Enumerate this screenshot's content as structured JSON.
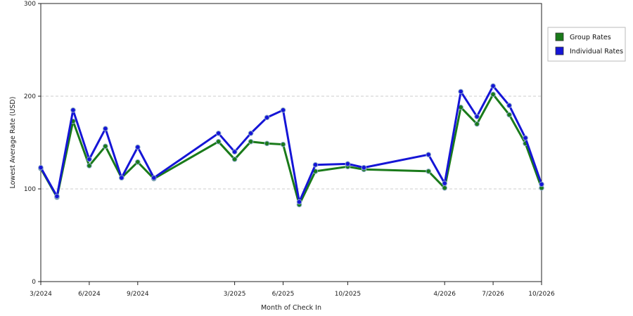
{
  "chart_data": {
    "type": "line",
    "xlabel": "Month of Check In",
    "ylabel": "Lowest Average Rate (USD)",
    "ylim": [
      0,
      300
    ],
    "yticks": [
      0,
      100,
      200,
      300
    ],
    "x_tick_labels": [
      "3/2024",
      "6/2024",
      "9/2024",
      "3/2025",
      "6/2025",
      "10/2025",
      "4/2026",
      "7/2026",
      "10/2026"
    ],
    "x": [
      "3/2024",
      "4/2024",
      "5/2024",
      "6/2024",
      "7/2024",
      "8/2024",
      "9/2024",
      "10/2024",
      "2/2025",
      "3/2025",
      "4/2025",
      "5/2025",
      "6/2025",
      "7/2025",
      "8/2025",
      "10/2025",
      "11/2025",
      "3/2026",
      "4/2026",
      "5/2026",
      "6/2026",
      "7/2026",
      "8/2026",
      "9/2026",
      "10/2026"
    ],
    "series": [
      {
        "name": "Group Rates",
        "color": "#1a7a1a",
        "values": [
          122,
          91,
          173,
          125,
          146,
          112,
          129,
          111,
          151,
          132,
          151,
          149,
          148,
          83,
          119,
          124,
          121,
          119,
          101,
          188,
          170,
          202,
          180,
          149,
          101
        ]
      },
      {
        "name": "Individual Rates",
        "color": "#1515d6",
        "values": [
          123,
          92,
          185,
          132,
          165,
          112,
          145,
          112,
          160,
          140,
          160,
          177,
          185,
          86,
          126,
          127,
          123,
          137,
          106,
          205,
          178,
          211,
          190,
          155,
          105
        ]
      }
    ],
    "grid": "horizontal dashed",
    "legend_position": "right"
  }
}
